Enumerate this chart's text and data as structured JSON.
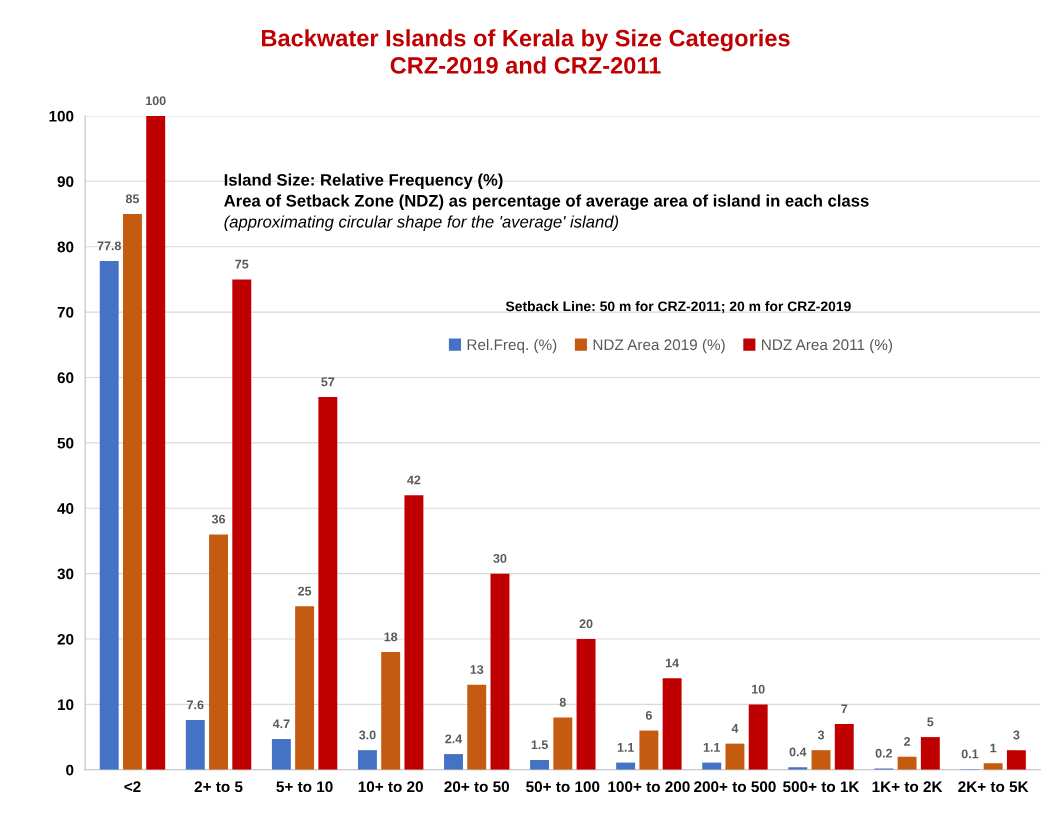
{
  "chart_data": {
    "type": "bar",
    "title": "Backwater Islands of Kerala by Size Categories\nCRZ-2019 and CRZ-2011",
    "categories": [
      "<2",
      "2+ to 5",
      "5+ to 10",
      "10+ to 20",
      "20+ to 50",
      "50+ to 100",
      "100+ to 200",
      "200+ to 500",
      "500+ to 1K",
      "1K+ to 2K",
      "2K+ to 5K"
    ],
    "series": [
      {
        "name": "Rel.Freq. (%)",
        "color": "#4472c4",
        "values": [
          77.8,
          7.6,
          4.7,
          3.0,
          2.4,
          1.5,
          1.1,
          1.1,
          0.4,
          0.2,
          0.1
        ],
        "value_labels": [
          "77.8",
          "7.6",
          "4.7",
          "3.0",
          "2.4",
          "1.5",
          "1.1",
          "1.1",
          "0.4",
          "0.2",
          "0.1"
        ]
      },
      {
        "name": "NDZ Area 2019 (%)",
        "color": "#c55a11",
        "values": [
          85,
          36,
          25,
          18,
          13,
          8,
          6,
          4,
          3,
          2,
          1
        ],
        "value_labels": [
          "85",
          "36",
          "25",
          "18",
          "13",
          "8",
          "6",
          "4",
          "3",
          "2",
          "1"
        ]
      },
      {
        "name": "NDZ Area 2011 (%)",
        "color": "#c00000",
        "values": [
          100,
          75,
          57,
          42,
          30,
          20,
          14,
          10,
          7,
          5,
          3
        ],
        "value_labels": [
          "100",
          "75",
          "57",
          "42",
          "30",
          "20",
          "14",
          "10",
          "7",
          "5",
          "3"
        ]
      }
    ],
    "ylim": [
      0,
      100
    ],
    "yticks": [
      0,
      10,
      20,
      30,
      40,
      50,
      60,
      70,
      80,
      90,
      100
    ],
    "grid": "y",
    "legend": "top right",
    "annotations": [
      "Island Size: Relative Frequency (%)",
      "Area of Setback Zone (NDZ) as percentage of average area of island in each class",
      "(approximating circular shape for the 'average' island)",
      "Setback Line: 50 m for CRZ-2011; 20 m for CRZ-2019"
    ]
  }
}
